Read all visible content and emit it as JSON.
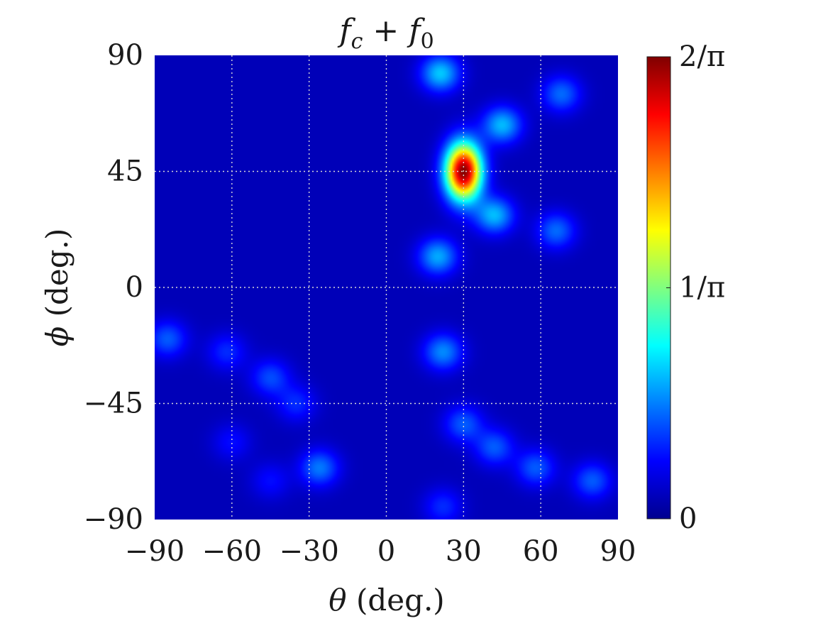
{
  "chart_data": {
    "type": "heatmap",
    "title": {
      "base1": "f",
      "sub1": "c",
      "op": " + ",
      "base2": "f",
      "sub2": "0"
    },
    "xlabel": {
      "symbol": "θ",
      "unit": " (deg.)"
    },
    "ylabel": {
      "symbol": "ϕ",
      "unit": " (deg.)"
    },
    "xlim": [
      -90,
      90
    ],
    "ylim": [
      -90,
      90
    ],
    "xticks": [
      -90,
      -60,
      -30,
      0,
      30,
      60,
      90
    ],
    "xtick_labels": [
      "−90",
      "−60",
      "−30",
      "0",
      "30",
      "60",
      "90"
    ],
    "yticks": [
      90,
      45,
      0,
      -45,
      -90
    ],
    "ytick_labels": [
      "90",
      "45",
      "0",
      "−45",
      "−90"
    ],
    "grid": true,
    "colormap": "jet",
    "colorbar": {
      "range": [
        0,
        0.6366
      ],
      "ticks": [
        0,
        0.3183,
        0.6366
      ],
      "tick_labels": [
        "0",
        "1/π",
        "2/π"
      ]
    },
    "background_level": 0.035,
    "peak": {
      "theta": 30,
      "phi": 45,
      "value": 0.6366
    },
    "lobes": [
      {
        "theta": 30,
        "phi": 45,
        "value": 0.6
      },
      {
        "theta": 21,
        "phi": 83,
        "value": 0.17
      },
      {
        "theta": 45,
        "phi": 63,
        "value": 0.16
      },
      {
        "theta": 42,
        "phi": 28,
        "value": 0.16
      },
      {
        "theta": 20,
        "phi": 12,
        "value": 0.15
      },
      {
        "theta": 68,
        "phi": 75,
        "value": 0.11
      },
      {
        "theta": 66,
        "phi": 22,
        "value": 0.11
      },
      {
        "theta": 22,
        "phi": -25,
        "value": 0.13
      },
      {
        "theta": -85,
        "phi": -20,
        "value": 0.1
      },
      {
        "theta": -62,
        "phi": -25,
        "value": 0.07
      },
      {
        "theta": -45,
        "phi": -35,
        "value": 0.09
      },
      {
        "theta": -35,
        "phi": -45,
        "value": 0.07
      },
      {
        "theta": -26,
        "phi": -70,
        "value": 0.12
      },
      {
        "theta": 30,
        "phi": -53,
        "value": 0.1
      },
      {
        "theta": 42,
        "phi": -62,
        "value": 0.1
      },
      {
        "theta": 58,
        "phi": -70,
        "value": 0.1
      },
      {
        "theta": 80,
        "phi": -75,
        "value": 0.1
      },
      {
        "theta": 22,
        "phi": -85,
        "value": 0.07
      },
      {
        "theta": -45,
        "phi": -75,
        "value": 0.05
      },
      {
        "theta": -60,
        "phi": -60,
        "value": 0.05
      }
    ]
  }
}
